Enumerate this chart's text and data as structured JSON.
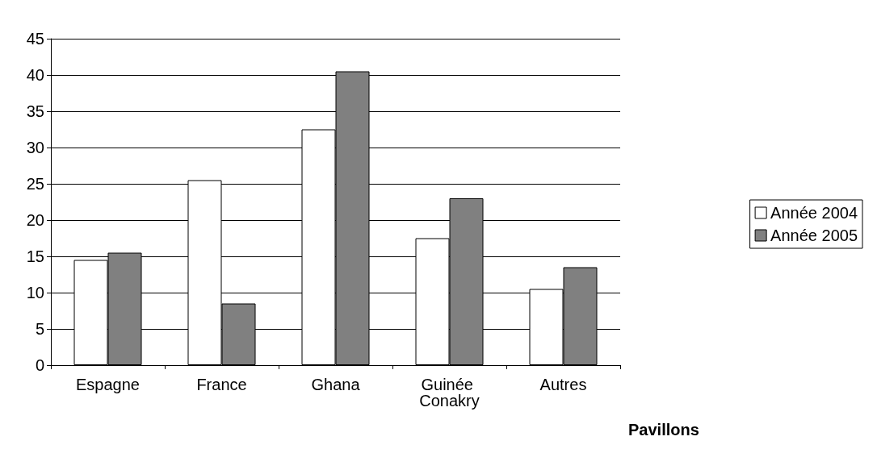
{
  "chart_data": {
    "type": "bar",
    "xlabel": "Pavillons",
    "categories": [
      "Espagne",
      "France",
      "Ghana",
      "Guinée Conakry",
      "Autres"
    ],
    "series": [
      {
        "name": "Année 2004",
        "color": "#ffffff",
        "values": [
          14.5,
          25.5,
          32.5,
          17.5,
          10.5
        ]
      },
      {
        "name": "Année 2005",
        "color": "#808080",
        "values": [
          15.5,
          8.5,
          40.5,
          23,
          13.5
        ]
      }
    ],
    "ylim": [
      0,
      45
    ],
    "yticks": [
      0,
      5,
      10,
      15,
      20,
      25,
      30,
      35,
      40,
      45
    ],
    "grid": "y",
    "legend": "right"
  }
}
